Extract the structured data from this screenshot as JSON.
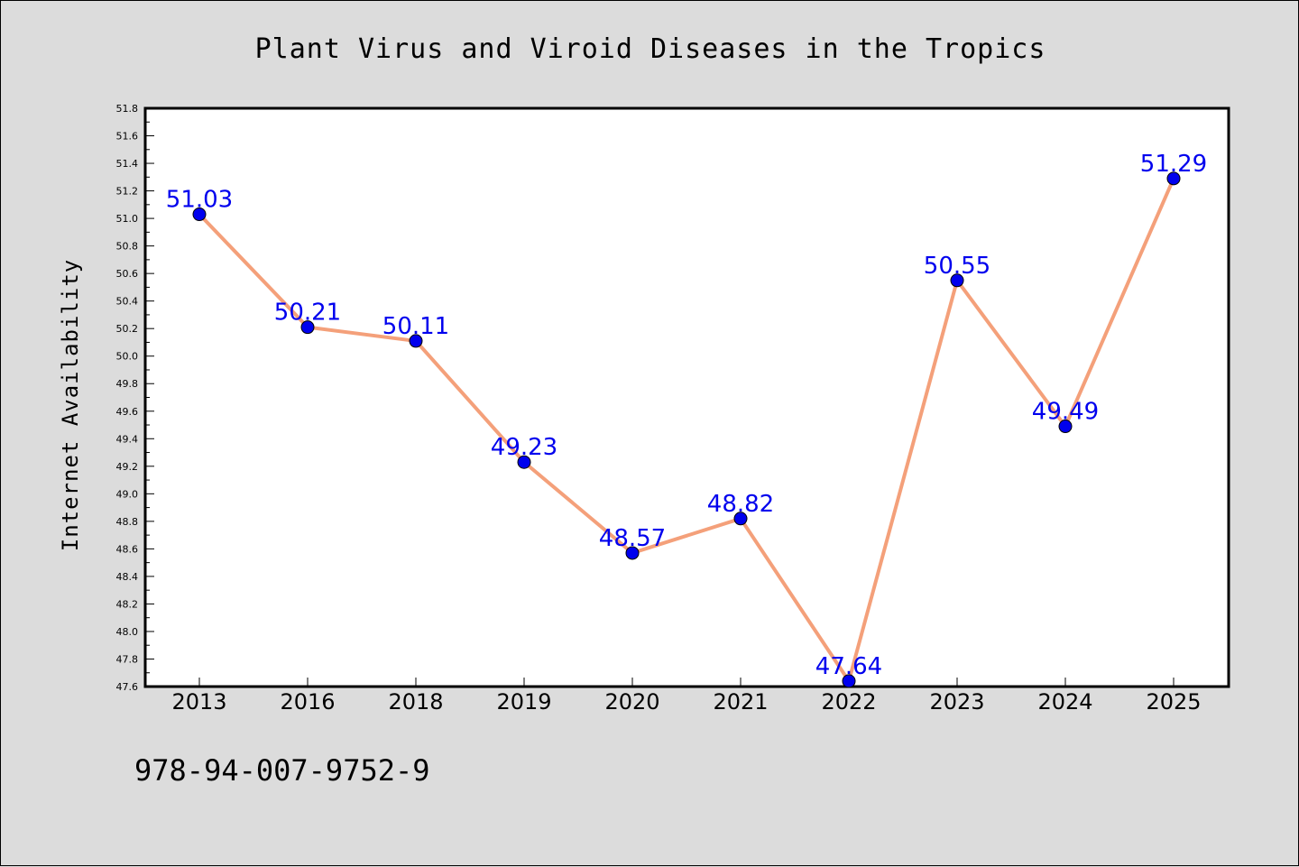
{
  "chart_data": {
    "type": "line",
    "title": "Plant Virus and Viroid Diseases in the Tropics",
    "xlabel": "",
    "ylabel": "Internet Availability",
    "categories": [
      "2013",
      "2016",
      "2018",
      "2019",
      "2020",
      "2021",
      "2022",
      "2023",
      "2024",
      "2025"
    ],
    "series": [
      {
        "values": [
          51.03,
          50.21,
          50.11,
          49.23,
          48.57,
          48.82,
          47.64,
          50.55,
          49.49,
          51.29
        ],
        "data_labels": [
          "51.03",
          "50.21",
          "50.11",
          "49.23",
          "48.57",
          "48.82",
          "47.64",
          "50.55",
          "49.49",
          "51.29"
        ],
        "line_color": "#f4a07a",
        "marker_color": "#0000ee",
        "label_color": "#0000ee"
      }
    ],
    "ylim": [
      47.6,
      51.8
    ],
    "yticks": [
      "47.6",
      "47.8",
      "48.0",
      "48.2",
      "48.4",
      "48.6",
      "48.8",
      "49.0",
      "49.2",
      "49.4",
      "49.6",
      "49.8",
      "50.0",
      "50.2",
      "50.4",
      "50.6",
      "50.8",
      "51.0",
      "51.2",
      "51.4",
      "51.6",
      "51.8"
    ],
    "grid": false,
    "legend": "none"
  },
  "footer": {
    "isbn": "978-94-007-9752-9"
  },
  "colors": {
    "background": "#dcdcdc",
    "plot_background": "#ffffff"
  }
}
